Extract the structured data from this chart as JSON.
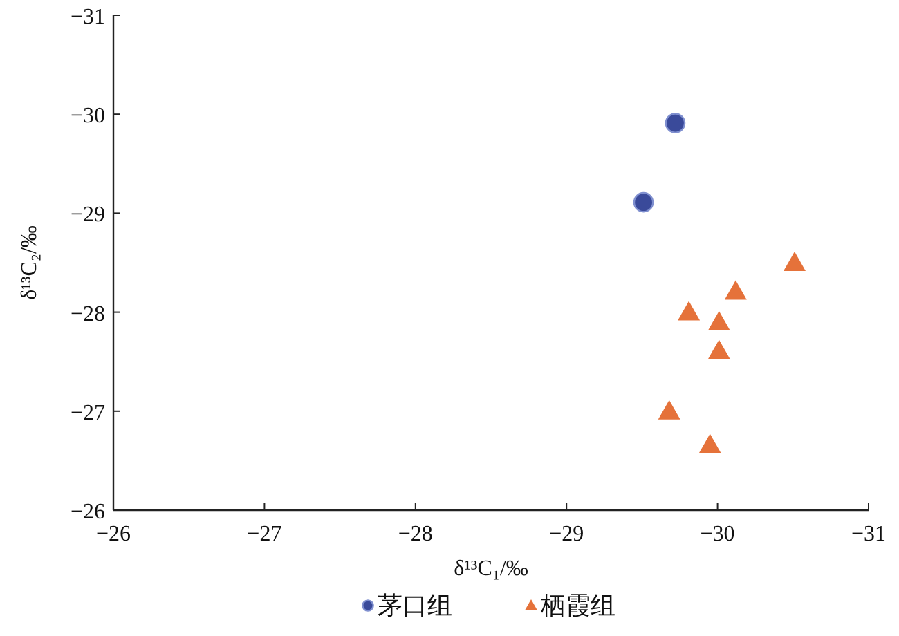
{
  "chart_data": {
    "type": "scatter",
    "xlabel": "δ¹³C₁/‰",
    "ylabel": "δ¹³C₂/‰",
    "xlim": [
      -26,
      -31
    ],
    "ylim": [
      -26,
      -31
    ],
    "xticks": [
      {
        "value": -26,
        "label": "−26"
      },
      {
        "value": -27,
        "label": "−27"
      },
      {
        "value": -28,
        "label": "−28"
      },
      {
        "value": -29,
        "label": "−29"
      },
      {
        "value": -30,
        "label": "−30"
      },
      {
        "value": -31,
        "label": "−31"
      }
    ],
    "yticks": [
      {
        "value": -26,
        "label": "−26"
      },
      {
        "value": -27,
        "label": "−27"
      },
      {
        "value": -28,
        "label": "−28"
      },
      {
        "value": -29,
        "label": "−29"
      },
      {
        "value": -30,
        "label": "−30"
      },
      {
        "value": -31,
        "label": "−31"
      }
    ],
    "legend": "bottom",
    "grid": false,
    "series": [
      {
        "name": "茅口组",
        "color": "#3a4a9a",
        "marker": "circle",
        "x": [
          -29.72,
          -29.51
        ],
        "values": [
          -29.91,
          -29.11
        ]
      },
      {
        "name": "栖霞组",
        "color": "#e5723a",
        "marker": "triangle",
        "x": [
          -30.51,
          -30.12,
          -29.81,
          -30.01,
          -30.01,
          -29.68,
          -29.95
        ],
        "values": [
          -28.5,
          -28.21,
          -28.0,
          -27.9,
          -27.61,
          -27.0,
          -26.66
        ]
      }
    ]
  }
}
